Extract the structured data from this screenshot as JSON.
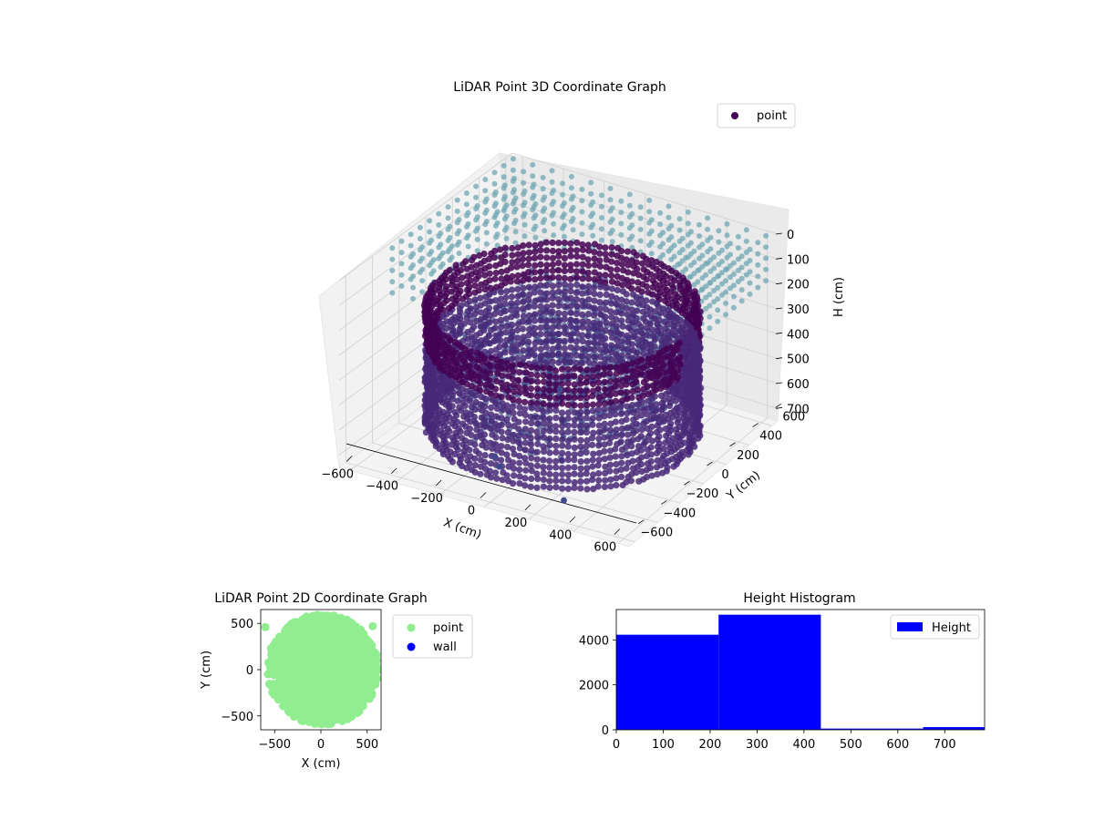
{
  "colors": {
    "point3d": "#440154",
    "ring3d": "#482878",
    "dots3d": "#3e4a89",
    "grid3d_points": "#6fa7b3",
    "point2d": "#90ee90",
    "wall2d": "#0000ff",
    "hist": "#0000ff"
  },
  "chart_data": [
    {
      "type": "scatter",
      "projection": "3d",
      "title": "LiDAR Point 3D Coordinate Graph",
      "xlabel": "X (cm)",
      "ylabel": "Y (cm)",
      "zlabel": "H (cm)",
      "xticks": [
        "−600",
        "−400",
        "−200",
        "0",
        "200",
        "400",
        "600"
      ],
      "yticks": [
        "−600",
        "−400",
        "−200",
        "0",
        "200",
        "400",
        "600"
      ],
      "zticks": [
        "0",
        "100",
        "200",
        "300",
        "400",
        "500",
        "600",
        "700"
      ],
      "xlim": [
        -650,
        650
      ],
      "ylim": [
        -650,
        650
      ],
      "zlim": [
        0,
        750
      ],
      "z_inverted": true,
      "legend": {
        "entries": [
          "point"
        ],
        "placement": "top-right"
      },
      "series": [
        {
          "name": "point",
          "description_shape": "ring of points radius ~550 cm from H 200 to 700, interior clutter, sparse grid of points near H 0",
          "ring": {
            "radius": 550,
            "h_min": 200,
            "h_max": 700
          },
          "outliers": [
            [
              -150,
              -300,
              720
            ],
            [
              -100,
              -350,
              730
            ],
            [
              250,
              -450,
              740
            ],
            [
              -200,
              300,
              700
            ]
          ]
        }
      ]
    },
    {
      "type": "scatter",
      "title": "LiDAR Point 2D Coordinate Graph",
      "xlabel": "X (cm)",
      "ylabel": "Y (cm)",
      "xticks": [
        "−500",
        "0",
        "500"
      ],
      "yticks": [
        "−500",
        "0",
        "500"
      ],
      "xlim": [
        -650,
        650
      ],
      "ylim": [
        -650,
        650
      ],
      "grid": false,
      "legend": {
        "entries": [
          "point",
          "wall"
        ],
        "placement": "outside-right"
      },
      "series": [
        {
          "name": "point",
          "shape": "filled disc of radius ~600 cm centred near (0,0)"
        },
        {
          "name": "wall",
          "values": []
        }
      ]
    },
    {
      "type": "bar",
      "subtype": "histogram",
      "title": "Height Histogram",
      "xticks": [
        "0",
        "100",
        "200",
        "300",
        "400",
        "500",
        "600",
        "700"
      ],
      "yticks": [
        "0",
        "2000",
        "4000"
      ],
      "xlim": [
        0,
        785
      ],
      "ylim": [
        0,
        5350
      ],
      "legend": {
        "entries": [
          "Height"
        ],
        "placement": "top-right"
      },
      "bin_edges": [
        0,
        218,
        436,
        654,
        785
      ],
      "values": [
        4230,
        5120,
        55,
        120
      ]
    }
  ]
}
